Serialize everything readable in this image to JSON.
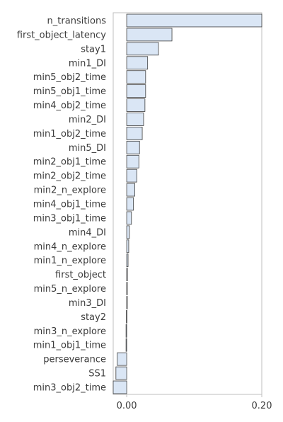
{
  "chart_data": {
    "type": "bar",
    "orientation": "horizontal",
    "title": "",
    "xlabel": "",
    "ylabel": "",
    "xlim": [
      -0.02,
      0.2
    ],
    "xticks": [
      0.0,
      0.2
    ],
    "xtick_labels": [
      "0.00",
      "0.20"
    ],
    "grid": false,
    "categories": [
      "n_transitions",
      "first_object_latency",
      "stay1",
      "min1_DI",
      "min5_obj2_time",
      "min5_obj1_time",
      "min4_obj2_time",
      "min2_DI",
      "min1_obj2_time",
      "min5_DI",
      "min2_obj1_time",
      "min2_obj2_time",
      "min2_n_explore",
      "min4_obj1_time",
      "min3_obj1_time",
      "min4_DI",
      "min4_n_explore",
      "min1_n_explore",
      "first_object",
      "min5_n_explore",
      "min3_DI",
      "stay2",
      "min3_n_explore",
      "min1_obj1_time",
      "perseverance",
      "SS1",
      "min3_obj2_time"
    ],
    "values": [
      0.2,
      0.067,
      0.047,
      0.031,
      0.028,
      0.028,
      0.027,
      0.025,
      0.023,
      0.019,
      0.018,
      0.015,
      0.012,
      0.01,
      0.007,
      0.004,
      0.003,
      0.002,
      0.001,
      0.0005,
      0.0005,
      -0.0005,
      -0.001,
      -0.001,
      -0.014,
      -0.016,
      -0.02
    ],
    "colors": {
      "bar_fill": "#dae6f5",
      "bar_stroke": "#3d3d3d",
      "frame": "#bfbfbf",
      "text": "#3b3b3b"
    }
  }
}
